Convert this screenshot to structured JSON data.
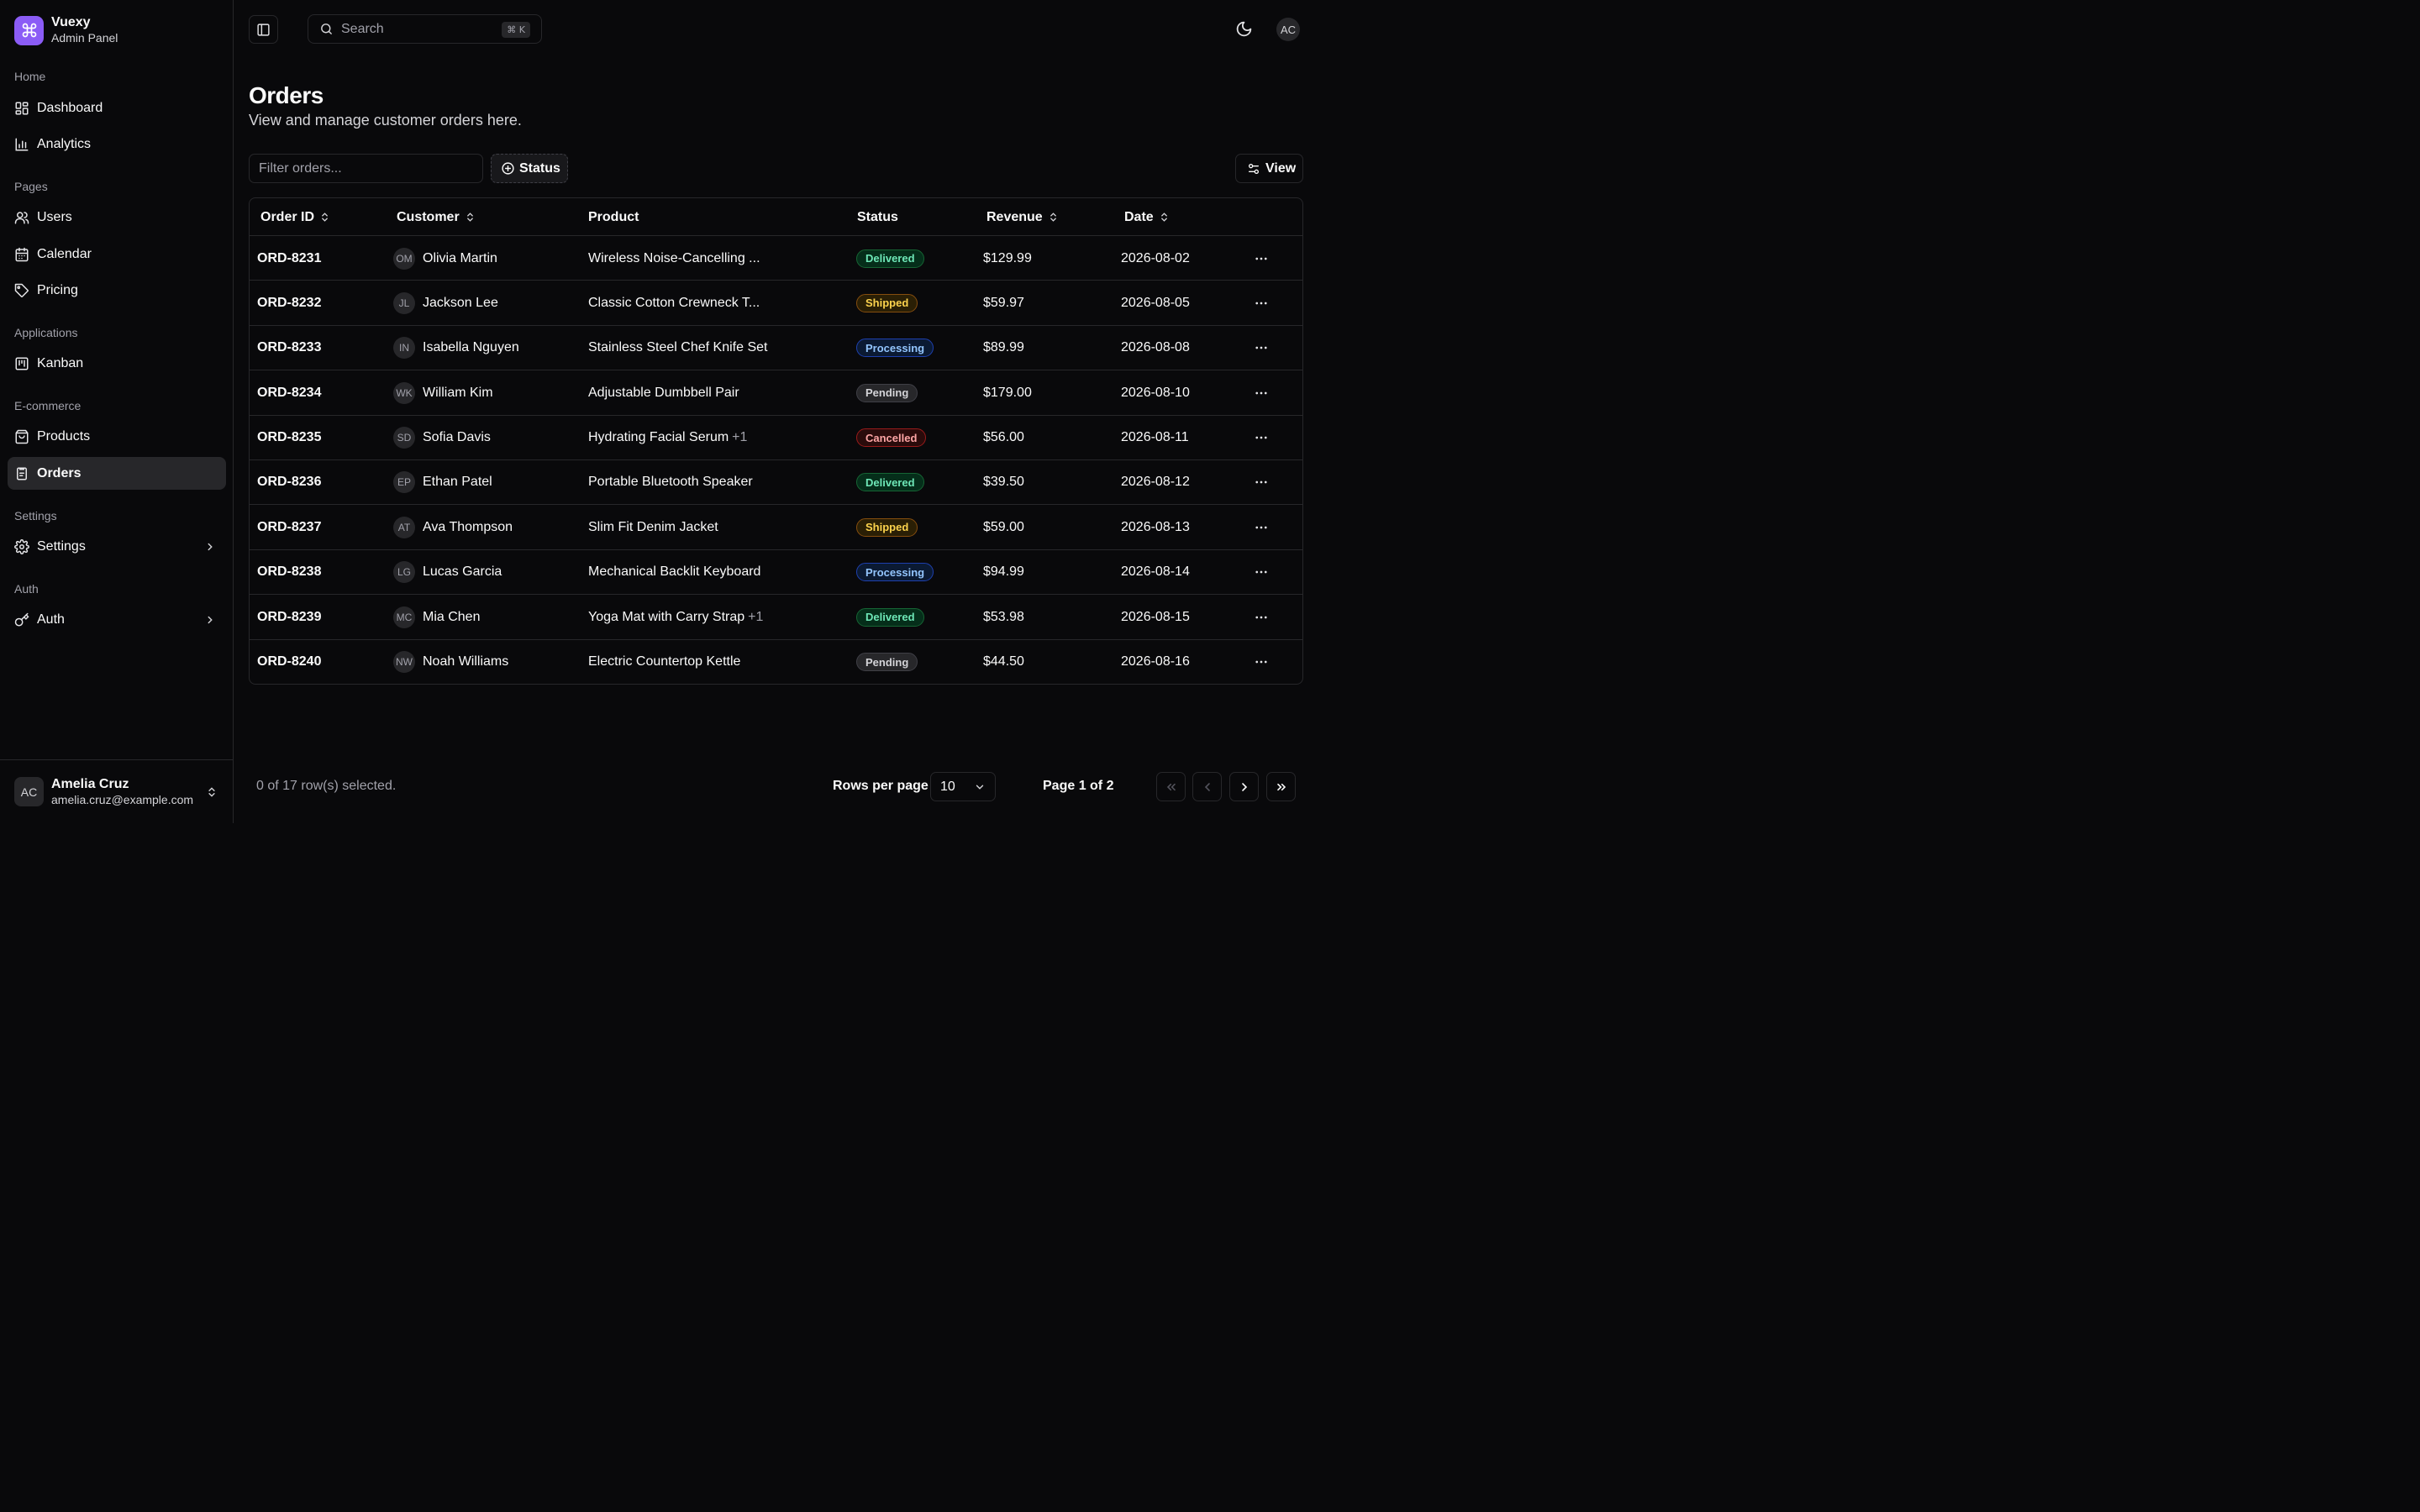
{
  "brand": {
    "name": "Vuexy",
    "subtitle": "Admin Panel"
  },
  "sidebar": {
    "groups": [
      {
        "label": "Home",
        "items": [
          {
            "label": "Dashboard",
            "icon": "dashboard-icon"
          },
          {
            "label": "Analytics",
            "icon": "analytics-icon"
          }
        ]
      },
      {
        "label": "Pages",
        "items": [
          {
            "label": "Users",
            "icon": "users-icon"
          },
          {
            "label": "Calendar",
            "icon": "calendar-icon"
          },
          {
            "label": "Pricing",
            "icon": "tag-icon"
          }
        ]
      },
      {
        "label": "Applications",
        "items": [
          {
            "label": "Kanban",
            "icon": "kanban-icon"
          }
        ]
      },
      {
        "label": "E-commerce",
        "items": [
          {
            "label": "Products",
            "icon": "products-icon"
          },
          {
            "label": "Orders",
            "icon": "orders-icon",
            "active": true
          }
        ]
      },
      {
        "label": "Settings",
        "items": [
          {
            "label": "Settings",
            "icon": "gear-icon",
            "expandable": true
          }
        ]
      },
      {
        "label": "Auth",
        "items": [
          {
            "label": "Auth",
            "icon": "key-icon",
            "expandable": true
          }
        ]
      }
    ]
  },
  "user": {
    "initials": "AC",
    "name": "Amelia Cruz",
    "email": "amelia.cruz@example.com"
  },
  "topbar": {
    "search_placeholder": "Search",
    "search_shortcut": "⌘ K",
    "avatar_initials": "AC"
  },
  "page": {
    "title": "Orders",
    "subtitle": "View and manage customer orders here."
  },
  "toolbar": {
    "filter_placeholder": "Filter orders...",
    "status_label": "Status",
    "view_label": "View"
  },
  "table": {
    "columns": [
      {
        "label": "Order ID",
        "sortable": true
      },
      {
        "label": "Customer",
        "sortable": true
      },
      {
        "label": "Product",
        "sortable": false
      },
      {
        "label": "Status",
        "sortable": false
      },
      {
        "label": "Revenue",
        "sortable": true
      },
      {
        "label": "Date",
        "sortable": true
      }
    ],
    "rows": [
      {
        "id": "ORD-8231",
        "initials": "OM",
        "customer": "Olivia Martin",
        "product": "Wireless Noise-Cancelling ...",
        "extra": "",
        "status": "Delivered",
        "revenue": "$129.99",
        "date": "2026-08-02"
      },
      {
        "id": "ORD-8232",
        "initials": "JL",
        "customer": "Jackson Lee",
        "product": "Classic Cotton Crewneck T...",
        "extra": "",
        "status": "Shipped",
        "revenue": "$59.97",
        "date": "2026-08-05"
      },
      {
        "id": "ORD-8233",
        "initials": "IN",
        "customer": "Isabella Nguyen",
        "product": "Stainless Steel Chef Knife Set",
        "extra": "",
        "status": "Processing",
        "revenue": "$89.99",
        "date": "2026-08-08"
      },
      {
        "id": "ORD-8234",
        "initials": "WK",
        "customer": "William Kim",
        "product": "Adjustable Dumbbell Pair",
        "extra": "",
        "status": "Pending",
        "revenue": "$179.00",
        "date": "2026-08-10"
      },
      {
        "id": "ORD-8235",
        "initials": "SD",
        "customer": "Sofia Davis",
        "product": "Hydrating Facial Serum",
        "extra": "+1",
        "status": "Cancelled",
        "revenue": "$56.00",
        "date": "2026-08-11"
      },
      {
        "id": "ORD-8236",
        "initials": "EP",
        "customer": "Ethan Patel",
        "product": "Portable Bluetooth Speaker",
        "extra": "",
        "status": "Delivered",
        "revenue": "$39.50",
        "date": "2026-08-12"
      },
      {
        "id": "ORD-8237",
        "initials": "AT",
        "customer": "Ava Thompson",
        "product": "Slim Fit Denim Jacket",
        "extra": "",
        "status": "Shipped",
        "revenue": "$59.00",
        "date": "2026-08-13"
      },
      {
        "id": "ORD-8238",
        "initials": "LG",
        "customer": "Lucas Garcia",
        "product": "Mechanical Backlit Keyboard",
        "extra": "",
        "status": "Processing",
        "revenue": "$94.99",
        "date": "2026-08-14"
      },
      {
        "id": "ORD-8239",
        "initials": "MC",
        "customer": "Mia Chen",
        "product": "Yoga Mat with Carry Strap",
        "extra": "+1",
        "status": "Delivered",
        "revenue": "$53.98",
        "date": "2026-08-15"
      },
      {
        "id": "ORD-8240",
        "initials": "NW",
        "customer": "Noah Williams",
        "product": "Electric Countertop Kettle",
        "extra": "",
        "status": "Pending",
        "revenue": "$44.50",
        "date": "2026-08-16"
      }
    ]
  },
  "status_colors": {
    "Delivered": {
      "text": "#6ee7b7",
      "border": "#166534",
      "bg": "#052e1a"
    },
    "Shipped": {
      "text": "#fcd34d",
      "border": "#854d0e",
      "bg": "#2a1f05"
    },
    "Processing": {
      "text": "#93c5fd",
      "border": "#1e40af",
      "bg": "#0b1a33"
    },
    "Pending": {
      "text": "#d4d4d8",
      "border": "#3f3f46",
      "bg": "#27272a"
    },
    "Cancelled": {
      "text": "#fca5a5",
      "border": "#991b1b",
      "bg": "#2a0b0b"
    }
  },
  "footer": {
    "selected_text": "0 of 17 row(s) selected.",
    "rows_per_page_label": "Rows per page",
    "rows_per_page_value": "10",
    "page_info": "Page 1 of 2"
  },
  "accent_color": "#8b5cf6"
}
